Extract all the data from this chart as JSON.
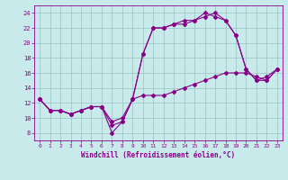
{
  "xlabel": "Windchill (Refroidissement éolien,°C)",
  "bg_color": "#c8eaea",
  "grid_color": "#a0c8c8",
  "line_color": "#880088",
  "xlim": [
    -0.5,
    23.5
  ],
  "ylim": [
    7,
    25
  ],
  "xticks": [
    0,
    1,
    2,
    3,
    4,
    5,
    6,
    7,
    8,
    9,
    10,
    11,
    12,
    13,
    14,
    15,
    16,
    17,
    18,
    19,
    20,
    21,
    22,
    23
  ],
  "yticks": [
    8,
    10,
    12,
    14,
    16,
    18,
    20,
    22,
    24
  ],
  "line1_x": [
    0,
    1,
    2,
    3,
    4,
    5,
    6,
    7,
    8,
    9,
    10,
    11,
    12,
    13,
    14,
    15,
    16,
    17,
    18,
    19,
    20,
    21,
    22,
    23
  ],
  "line1_y": [
    12.5,
    11.0,
    11.0,
    10.5,
    11.0,
    11.5,
    11.5,
    8.0,
    9.5,
    12.5,
    13.0,
    13.0,
    13.0,
    13.5,
    14.0,
    14.5,
    15.0,
    15.5,
    16.0,
    16.0,
    16.0,
    15.5,
    15.0,
    16.5
  ],
  "line2_x": [
    0,
    1,
    2,
    3,
    4,
    5,
    6,
    7,
    8,
    9,
    10,
    11,
    12,
    13,
    14,
    15,
    16,
    17,
    18,
    19,
    20,
    21,
    22,
    23
  ],
  "line2_y": [
    12.5,
    11.0,
    11.0,
    10.5,
    11.0,
    11.5,
    11.5,
    9.5,
    10.0,
    12.5,
    18.5,
    22.0,
    22.0,
    22.5,
    23.0,
    23.0,
    23.5,
    24.0,
    23.0,
    21.0,
    16.5,
    15.0,
    15.0,
    16.5
  ],
  "line3_x": [
    0,
    1,
    2,
    3,
    4,
    5,
    6,
    7,
    8,
    9,
    10,
    11,
    12,
    13,
    14,
    15,
    16,
    17,
    18,
    19,
    20,
    21,
    22,
    23
  ],
  "line3_y": [
    12.5,
    11.0,
    11.0,
    10.5,
    11.0,
    11.5,
    11.5,
    9.0,
    9.5,
    12.5,
    18.5,
    22.0,
    22.0,
    22.5,
    22.5,
    23.0,
    24.0,
    23.5,
    23.0,
    21.0,
    16.5,
    15.0,
    15.5,
    16.5
  ]
}
